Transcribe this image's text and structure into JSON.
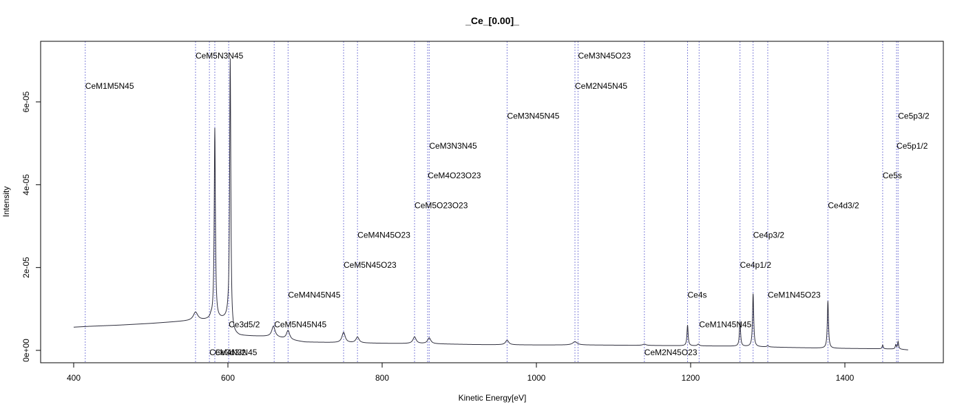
{
  "chart_data": {
    "type": "line",
    "title": "_Ce_[0.00]_",
    "xlabel": "Kinetic Energy[eV]",
    "ylabel": "Intensity",
    "xlim": [
      400,
      1480
    ],
    "ylim": [
      0,
      7.12e-05
    ],
    "xticks": [
      400,
      600,
      800,
      1000,
      1200,
      1400
    ],
    "xtick_labels": [
      "400",
      "600",
      "800",
      "1000",
      "1200",
      "1400"
    ],
    "yticks": [
      0,
      2e-05,
      4e-05,
      6e-05
    ],
    "ytick_labels": [
      "0e+00",
      "2e-05",
      "4e-05",
      "6e-05"
    ],
    "grid": false,
    "colors": {
      "spectrum": "#2b2b3a",
      "marker": "#7f7fd9"
    },
    "spectrum": {
      "baseline_points": [
        [
          400,
          5.6e-06
        ],
        [
          420,
          5.8e-06
        ],
        [
          460,
          6.1e-06
        ],
        [
          500,
          6.5e-06
        ],
        [
          540,
          7e-06
        ],
        [
          570,
          7.3e-06
        ],
        [
          580,
          7.5e-06
        ],
        [
          600,
          7.5e-06
        ],
        [
          605,
          4e-06
        ],
        [
          615,
          3.5e-06
        ],
        [
          640,
          3.4e-06
        ],
        [
          660,
          3.3e-06
        ],
        [
          680,
          2.5e-06
        ],
        [
          700,
          2e-06
        ],
        [
          760,
          1.8e-06
        ],
        [
          800,
          1.7e-06
        ],
        [
          860,
          1.6e-06
        ],
        [
          920,
          1.4e-06
        ],
        [
          1000,
          1.3e-06
        ],
        [
          1060,
          1.3e-06
        ],
        [
          1140,
          1.2e-06
        ],
        [
          1200,
          1.1e-06
        ],
        [
          1260,
          1e-06
        ],
        [
          1300,
          8e-07
        ],
        [
          1380,
          5e-07
        ],
        [
          1440,
          4e-07
        ],
        [
          1470,
          3e-07
        ],
        [
          1482,
          1e-07
        ]
      ],
      "peaks": [
        {
          "x": 558,
          "height": 2e-06,
          "width": 3.5
        },
        {
          "x": 578,
          "height": 5e-07,
          "width": 1.2
        },
        {
          "x": 583,
          "height": 4.6e-05,
          "width": 0.9
        },
        {
          "x": 603,
          "height": 6.5e-05,
          "width": 0.9
        },
        {
          "x": 659,
          "height": 2.5e-06,
          "width": 2.5
        },
        {
          "x": 678,
          "height": 2.2e-06,
          "width": 2.5
        },
        {
          "x": 750,
          "height": 2.5e-06,
          "width": 2.5
        },
        {
          "x": 768,
          "height": 1.4e-06,
          "width": 2.5
        },
        {
          "x": 842,
          "height": 1.6e-06,
          "width": 2.5
        },
        {
          "x": 861,
          "height": 1.4e-06,
          "width": 2.5
        },
        {
          "x": 962,
          "height": 1.1e-06,
          "width": 2.5
        },
        {
          "x": 1050,
          "height": 8e-07,
          "width": 3.5
        },
        {
          "x": 1140,
          "height": 3e-07,
          "width": 2.5
        },
        {
          "x": 1196,
          "height": 5e-06,
          "width": 0.9
        },
        {
          "x": 1210,
          "height": 4e-07,
          "width": 1.5
        },
        {
          "x": 1264,
          "height": 6e-06,
          "width": 0.9
        },
        {
          "x": 1281,
          "height": 1.28e-05,
          "width": 0.9
        },
        {
          "x": 1300,
          "height": 3e-07,
          "width": 1.5
        },
        {
          "x": 1378,
          "height": 1.14e-05,
          "width": 0.9
        },
        {
          "x": 1449,
          "height": 9e-07,
          "width": 0.8
        },
        {
          "x": 1466,
          "height": 1e-06,
          "width": 0.8
        },
        {
          "x": 1469,
          "height": 1.8e-06,
          "width": 0.8
        }
      ]
    },
    "markers": [
      {
        "x": 415,
        "label": "CeM1M5N45",
        "label_y": 6.38e-05
      },
      {
        "x": 558,
        "label": "CeM5N3N45",
        "label_y": 7.11e-05
      },
      {
        "x": 576,
        "label": "CeM4N3N45",
        "label_y": -5e-07
      },
      {
        "x": 583,
        "label": "Ce3d3/2",
        "label_y": -5e-07
      },
      {
        "x": 601,
        "label": "Ce3d5/2",
        "label_y": 6.2e-06
      },
      {
        "x": 660,
        "label": "CeM5N45N45",
        "label_y": 6.2e-06
      },
      {
        "x": 678,
        "label": "CeM4N45N45",
        "label_y": 1.34e-05
      },
      {
        "x": 750,
        "label": "CeM5N45O23",
        "label_y": 2.06e-05
      },
      {
        "x": 768,
        "label": "CeM4N45O23",
        "label_y": 2.78e-05
      },
      {
        "x": 842,
        "label": "CeM5O23O23",
        "label_y": 3.5e-05
      },
      {
        "x": 859,
        "label": "CeM4O23O23",
        "label_y": 4.22e-05
      },
      {
        "x": 861,
        "label": "CeM3N3N45",
        "label_y": 4.94e-05
      },
      {
        "x": 962,
        "label": "CeM3N45N45",
        "label_y": 5.66e-05
      },
      {
        "x": 1050,
        "label": "CeM2N45N45",
        "label_y": 6.38e-05
      },
      {
        "x": 1054,
        "label": "CeM3N45O23",
        "label_y": 7.11e-05
      },
      {
        "x": 1140,
        "label": "CeM2N45O23",
        "label_y": -5e-07
      },
      {
        "x": 1196,
        "label": "Ce4s",
        "label_y": 1.34e-05
      },
      {
        "x": 1211,
        "label": "CeM1N45N45",
        "label_y": 6.2e-06
      },
      {
        "x": 1264,
        "label": "Ce4p1/2",
        "label_y": 2.06e-05
      },
      {
        "x": 1281,
        "label": "Ce4p3/2",
        "label_y": 2.78e-05
      },
      {
        "x": 1300,
        "label": "CeM1N45O23",
        "label_y": 1.34e-05
      },
      {
        "x": 1378,
        "label": "Ce4d3/2",
        "label_y": 3.5e-05
      },
      {
        "x": 1449,
        "label": "Ce5s",
        "label_y": 4.22e-05
      },
      {
        "x": 1467,
        "label": "Ce5p1/2",
        "label_y": 4.94e-05
      },
      {
        "x": 1469,
        "label": "Ce5p3/2",
        "label_y": 5.66e-05
      }
    ]
  }
}
